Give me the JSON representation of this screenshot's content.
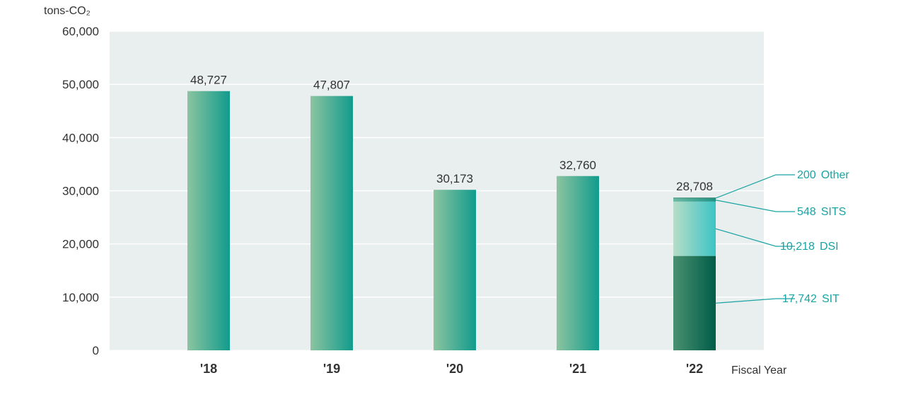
{
  "chart_data": {
    "type": "bar",
    "title": "",
    "ylabel": "tons-CO₂",
    "xlabel": "Fiscal Year",
    "ylim": [
      0,
      60000
    ],
    "yticks": [
      "0",
      "10,000",
      "20,000",
      "30,000",
      "40,000",
      "50,000",
      "60,000"
    ],
    "grid": true,
    "categories": [
      "'18",
      "'19",
      "'20",
      "'21",
      "'22"
    ],
    "values": [
      48727,
      47807,
      30173,
      32760,
      28708
    ],
    "value_labels": [
      "48,727",
      "47,807",
      "30,173",
      "32,760",
      "28,708"
    ],
    "stacked_breakdown": {
      "category": "'22",
      "segments": [
        {
          "name": "SIT",
          "value": 17742,
          "label": "17,742",
          "color": "#0e6b52"
        },
        {
          "name": "DSI",
          "value": 10218,
          "label": "10,218",
          "color": "#5cc4c0"
        },
        {
          "name": "SITS",
          "value": 548,
          "label": "548",
          "color": "#2a9a8c"
        },
        {
          "name": "Other",
          "value": 200,
          "label": "200",
          "color": "#2b8a6e"
        }
      ]
    },
    "colors": {
      "bar_start": "#8cc4a0",
      "bar_end": "#119b8c",
      "plot_bg": "#e9eeee",
      "callout": "#1aa3a3",
      "text": "#333333"
    }
  }
}
